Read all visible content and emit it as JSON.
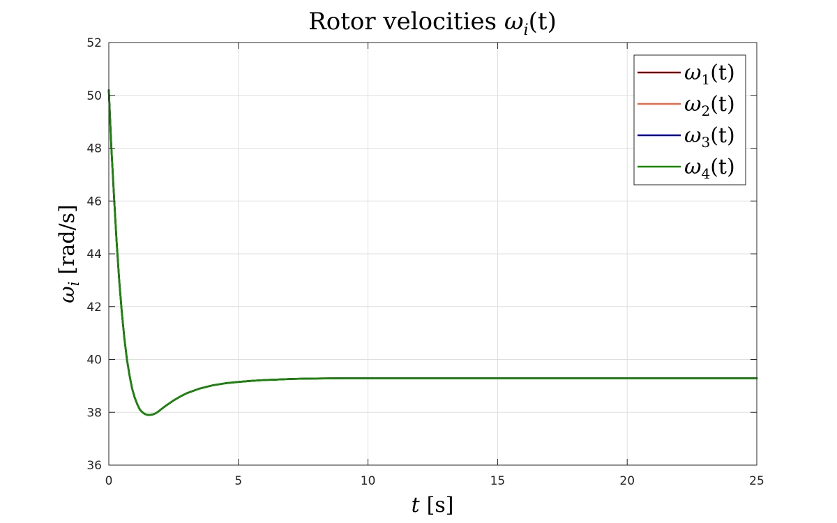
{
  "chart_data": {
    "type": "line",
    "title": "Rotor velocities ωi(t)",
    "title_text": "Rotor velocities ",
    "title_math": {
      "sym": "ω",
      "sub": "i",
      "arg": "(t)"
    },
    "xlabel": "t [s]",
    "xlabel_math": {
      "sym": "t",
      "unit": "[s]"
    },
    "ylabel": "ωi [rad/s]",
    "ylabel_math": {
      "sym": "ω",
      "sub": "i",
      "unit": "[rad/s]"
    },
    "xlim": [
      0,
      25
    ],
    "ylim": [
      36,
      52
    ],
    "xticks": [
      0,
      5,
      10,
      15,
      20,
      25
    ],
    "yticks": [
      36,
      38,
      40,
      42,
      44,
      46,
      48,
      50,
      52
    ],
    "grid": true,
    "legend": "top-right",
    "series": [
      {
        "name": "ω1(t)",
        "label": {
          "sym": "ω",
          "sub": "1",
          "arg": "(t)"
        },
        "color": "#7f0000",
        "x": [
          0,
          0.1,
          0.2,
          0.3,
          0.4,
          0.5,
          0.6,
          0.7,
          0.8,
          0.9,
          1.0,
          1.1,
          1.2,
          1.3,
          1.4,
          1.5,
          1.6,
          1.7,
          1.8,
          1.9,
          2.0,
          2.2,
          2.5,
          2.8,
          3.0,
          3.5,
          4.0,
          4.5,
          5.0,
          5.5,
          6.0,
          6.5,
          7.0,
          7.5,
          8.0,
          9.0,
          10.0,
          12.0,
          15.0,
          20.0,
          25.0
        ],
        "y": [
          50.2,
          48.0,
          46.2,
          44.5,
          43.0,
          41.8,
          40.8,
          40.0,
          39.4,
          38.9,
          38.55,
          38.3,
          38.1,
          38.0,
          37.93,
          37.9,
          37.9,
          37.92,
          37.96,
          38.02,
          38.1,
          38.25,
          38.45,
          38.62,
          38.72,
          38.9,
          39.02,
          39.1,
          39.15,
          39.19,
          39.22,
          39.24,
          39.26,
          39.27,
          39.28,
          39.29,
          39.29,
          39.29,
          39.29,
          39.29,
          39.29
        ]
      },
      {
        "name": "ω2(t)",
        "label": {
          "sym": "ω",
          "sub": "2",
          "arg": "(t)"
        },
        "color": "#e8694a",
        "x": [
          0,
          0.1,
          0.2,
          0.3,
          0.4,
          0.5,
          0.6,
          0.7,
          0.8,
          0.9,
          1.0,
          1.1,
          1.2,
          1.3,
          1.4,
          1.5,
          1.6,
          1.7,
          1.8,
          1.9,
          2.0,
          2.2,
          2.5,
          2.8,
          3.0,
          3.5,
          4.0,
          4.5,
          5.0,
          5.5,
          6.0,
          6.5,
          7.0,
          7.5,
          8.0,
          9.0,
          10.0,
          12.0,
          15.0,
          20.0,
          25.0
        ],
        "y": [
          50.2,
          48.0,
          46.2,
          44.5,
          43.0,
          41.8,
          40.8,
          40.0,
          39.4,
          38.9,
          38.55,
          38.3,
          38.1,
          38.0,
          37.93,
          37.9,
          37.9,
          37.92,
          37.96,
          38.02,
          38.1,
          38.25,
          38.45,
          38.62,
          38.72,
          38.9,
          39.02,
          39.1,
          39.15,
          39.19,
          39.22,
          39.24,
          39.26,
          39.27,
          39.28,
          39.29,
          39.29,
          39.29,
          39.29,
          39.29,
          39.29
        ]
      },
      {
        "name": "ω3(t)",
        "label": {
          "sym": "ω",
          "sub": "3",
          "arg": "(t)"
        },
        "color": "#0000a8",
        "x": [
          0,
          0.1,
          0.2,
          0.3,
          0.4,
          0.5,
          0.6,
          0.7,
          0.8,
          0.9,
          1.0,
          1.1,
          1.2,
          1.3,
          1.4,
          1.5,
          1.6,
          1.7,
          1.8,
          1.9,
          2.0,
          2.2,
          2.5,
          2.8,
          3.0,
          3.5,
          4.0,
          4.5,
          5.0,
          5.5,
          6.0,
          6.5,
          7.0,
          7.5,
          8.0,
          9.0,
          10.0,
          12.0,
          15.0,
          20.0,
          25.0
        ],
        "y": [
          50.2,
          48.0,
          46.2,
          44.5,
          43.0,
          41.8,
          40.8,
          40.0,
          39.4,
          38.9,
          38.55,
          38.3,
          38.1,
          38.0,
          37.93,
          37.9,
          37.9,
          37.92,
          37.96,
          38.02,
          38.1,
          38.25,
          38.45,
          38.62,
          38.72,
          38.9,
          39.02,
          39.1,
          39.15,
          39.19,
          39.22,
          39.24,
          39.26,
          39.27,
          39.28,
          39.29,
          39.29,
          39.29,
          39.29,
          39.29,
          39.29
        ]
      },
      {
        "name": "ω4(t)",
        "label": {
          "sym": "ω",
          "sub": "4",
          "arg": "(t)"
        },
        "color": "#138a00",
        "x": [
          0,
          0.1,
          0.2,
          0.3,
          0.4,
          0.5,
          0.6,
          0.7,
          0.8,
          0.9,
          1.0,
          1.1,
          1.2,
          1.3,
          1.4,
          1.5,
          1.6,
          1.7,
          1.8,
          1.9,
          2.0,
          2.2,
          2.5,
          2.8,
          3.0,
          3.5,
          4.0,
          4.5,
          5.0,
          5.5,
          6.0,
          6.5,
          7.0,
          7.5,
          8.0,
          9.0,
          10.0,
          12.0,
          15.0,
          20.0,
          25.0
        ],
        "y": [
          50.2,
          48.0,
          46.2,
          44.5,
          43.0,
          41.8,
          40.8,
          40.0,
          39.4,
          38.9,
          38.55,
          38.3,
          38.1,
          38.0,
          37.93,
          37.9,
          37.9,
          37.92,
          37.96,
          38.02,
          38.1,
          38.25,
          38.45,
          38.62,
          38.72,
          38.9,
          39.02,
          39.1,
          39.15,
          39.19,
          39.22,
          39.24,
          39.26,
          39.27,
          39.28,
          39.29,
          39.29,
          39.29,
          39.29,
          39.29,
          39.29
        ]
      }
    ]
  }
}
